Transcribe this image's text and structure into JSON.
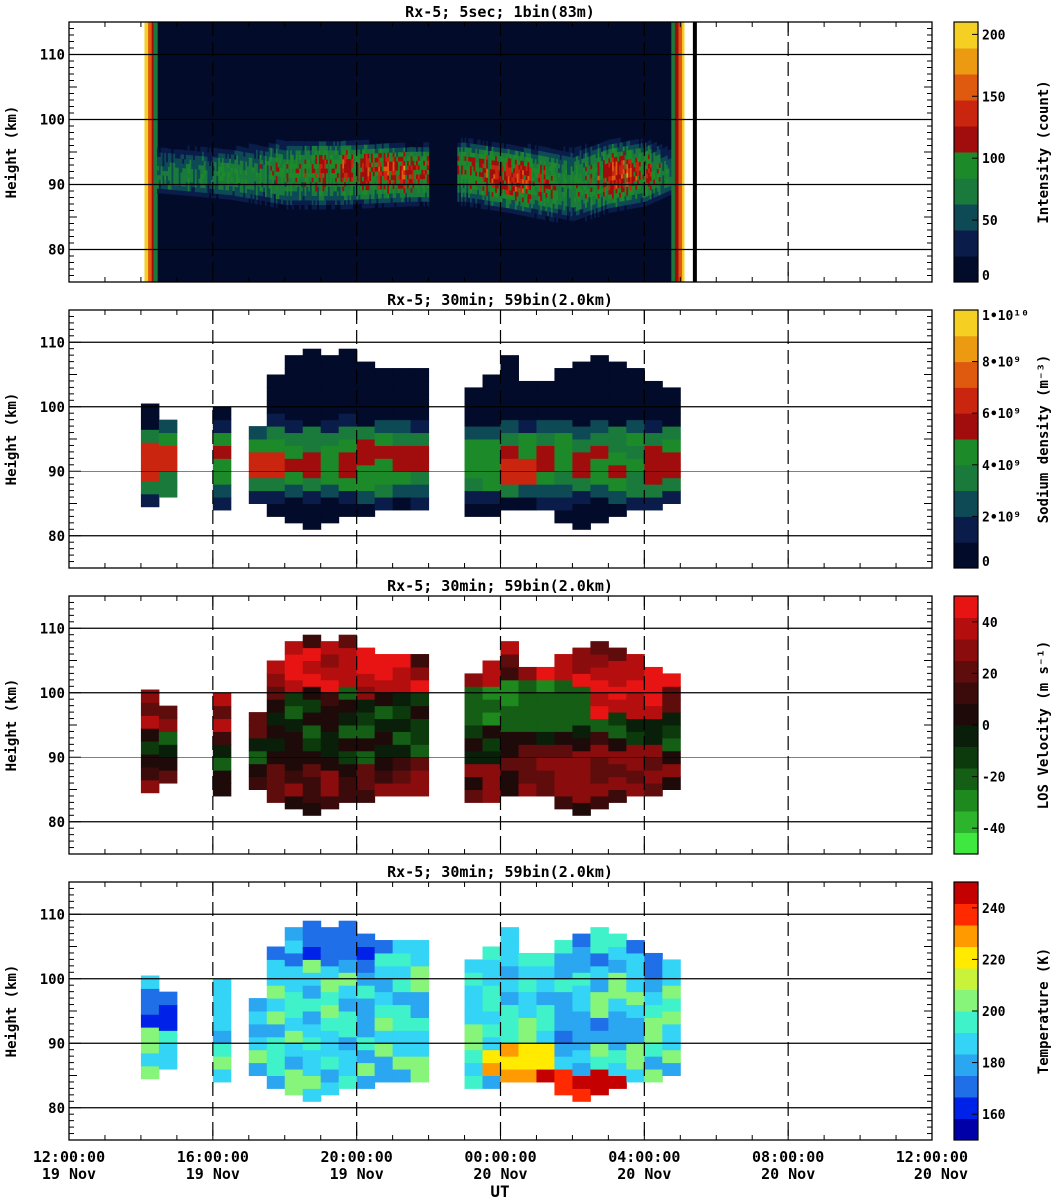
{
  "figure": {
    "xlabel": "UT",
    "x_ticks": [
      {
        "time": "12:00:00",
        "date": "19 Nov"
      },
      {
        "time": "16:00:00",
        "date": "19 Nov"
      },
      {
        "time": "20:00:00",
        "date": "19 Nov"
      },
      {
        "time": "00:00:00",
        "date": "20 Nov"
      },
      {
        "time": "04:00:00",
        "date": "20 Nov"
      },
      {
        "time": "08:00:00",
        "date": "20 Nov"
      },
      {
        "time": "12:00:00",
        "date": "20 Nov"
      }
    ]
  },
  "chart_data": [
    {
      "type": "heatmap",
      "title": "Rx-5;  5sec; 1bin(83m)",
      "ylabel": "Height (km)",
      "colorbar_label": "Intensity (count)",
      "colorbar_ticks": [
        "0",
        "50",
        "100",
        "150",
        "200"
      ],
      "colorbar_range": [
        0,
        210
      ],
      "colors": [
        "#020b2a",
        "#0a1c4a",
        "#0d4a55",
        "#1a7a3c",
        "#1d8a2a",
        "#a10d0d",
        "#c9250f",
        "#df5a0e",
        "#eb9a12",
        "#f5d022"
      ],
      "x_range_hours": [
        12,
        36
      ],
      "ylim": [
        75,
        115
      ],
      "y_ticks": [
        80,
        90,
        100,
        110
      ],
      "data_span_hours": [
        14.1,
        29.1
      ],
      "data_gap_hours": [
        [
          22.0,
          22.8
        ]
      ],
      "layer": {
        "times": [
          14.5,
          16.5,
          18.0,
          19.5,
          21.5,
          23.0,
          24.2,
          26.0,
          27.0,
          28.0,
          28.8
        ],
        "peak_km": [
          90.5,
          90.8,
          91.5,
          92.5,
          92.0,
          92.5,
          91.0,
          89.5,
          91.0,
          91.5,
          90.0
        ],
        "peak_counts": [
          70,
          80,
          95,
          120,
          130,
          100,
          140,
          80,
          130,
          125,
          60
        ],
        "bottom_km": [
          88,
          87,
          85.5,
          85.5,
          86,
          86,
          85,
          83,
          85,
          86,
          88
        ],
        "top_km": [
          96,
          96,
          97,
          97,
          96,
          97,
          96,
          96,
          97,
          97,
          96
        ]
      }
    },
    {
      "type": "heatmap",
      "title": "Rx-5; 30min; 59bin(2.0km)",
      "ylabel": "Height (km)",
      "colorbar_label": "Sodium density (m⁻³)",
      "colorbar_ticks": [
        "0",
        "2•10⁹",
        "4•10⁹",
        "6•10⁹",
        "8•10⁹",
        "1•10¹⁰"
      ],
      "colorbar_range": [
        0,
        10000000000
      ],
      "colors": [
        "#020b2a",
        "#0a1c4a",
        "#0d4a55",
        "#1a7a3c",
        "#1d8a2a",
        "#a10d0d",
        "#c9250f",
        "#df5a0e",
        "#eb9a12",
        "#f5d022"
      ],
      "x_range_hours": [
        12,
        36
      ],
      "ylim": [
        75,
        115
      ],
      "y_ticks": [
        80,
        90,
        100,
        110
      ],
      "columns": [
        {
          "t": 14.25,
          "bottom": 84.5,
          "top": 100
        },
        {
          "t": 14.75,
          "bottom": 86,
          "top": 97.5
        },
        {
          "t": 16.25,
          "bottom": 84,
          "top": 99
        },
        {
          "t": 17.25,
          "bottom": 85,
          "top": 97
        },
        {
          "t": 17.75,
          "bottom": 83,
          "top": 104
        },
        {
          "t": 18.25,
          "bottom": 82,
          "top": 107
        },
        {
          "t": 18.75,
          "bottom": 81,
          "top": 108
        },
        {
          "t": 19.25,
          "bottom": 82,
          "top": 107.5
        },
        {
          "t": 19.75,
          "bottom": 83,
          "top": 109
        },
        {
          "t": 20.25,
          "bottom": 83,
          "top": 107
        },
        {
          "t": 20.75,
          "bottom": 84,
          "top": 106
        },
        {
          "t": 21.25,
          "bottom": 84,
          "top": 106
        },
        {
          "t": 21.75,
          "bottom": 84,
          "top": 106
        },
        {
          "t": 23.25,
          "bottom": 83,
          "top": 103
        },
        {
          "t": 23.75,
          "bottom": 83,
          "top": 105
        },
        {
          "t": 24.25,
          "bottom": 84,
          "top": 107
        },
        {
          "t": 24.75,
          "bottom": 84,
          "top": 104
        },
        {
          "t": 25.25,
          "bottom": 84,
          "top": 104
        },
        {
          "t": 25.75,
          "bottom": 82,
          "top": 106
        },
        {
          "t": 26.25,
          "bottom": 81,
          "top": 107
        },
        {
          "t": 26.75,
          "bottom": 82,
          "top": 107
        },
        {
          "t": 27.25,
          "bottom": 83,
          "top": 106
        },
        {
          "t": 27.75,
          "bottom": 84,
          "top": 105
        },
        {
          "t": 28.25,
          "bottom": 84,
          "top": 104
        },
        {
          "t": 28.75,
          "bottom": 85,
          "top": 103
        }
      ],
      "density_peaks": [
        {
          "t": 14.5,
          "km": 91.5,
          "value": 6000000000
        },
        {
          "t": 17.5,
          "km": 91,
          "value": 6500000000
        },
        {
          "t": 24.5,
          "km": 90.5,
          "value": 6000000000
        },
        {
          "t": 21.5,
          "km": 92,
          "value": 5000000000
        }
      ]
    },
    {
      "type": "heatmap",
      "title": "Rx-5; 30min; 59bin(2.0km)",
      "ylabel": "Height (km)",
      "colorbar_label": "LOS Velocity (m s⁻¹)",
      "colorbar_ticks": [
        "-40",
        "-20",
        "0",
        "20",
        "40"
      ],
      "colorbar_range": [
        -50,
        50
      ],
      "colors": [
        "#3ee83e",
        "#2cb52c",
        "#1e8a1e",
        "#155e15",
        "#0c3a0c",
        "#0a1f0a",
        "#1f0a0a",
        "#3b0b0b",
        "#5e0c0c",
        "#8a0c0c",
        "#b50e0e",
        "#e81414"
      ],
      "x_range_hours": [
        12,
        36
      ],
      "ylim": [
        75,
        115
      ],
      "y_ticks": [
        80,
        90,
        100,
        110
      ],
      "features": [
        {
          "t": 19.75,
          "km": 104,
          "value": 45
        },
        {
          "t": 26.75,
          "km": 100,
          "value": 48
        },
        {
          "t": 24.5,
          "km": 98,
          "value": -25
        },
        {
          "t": 26.5,
          "km": 88,
          "value": 30
        }
      ]
    },
    {
      "type": "heatmap",
      "title": "Rx-5; 30min; 59bin(2.0km)",
      "ylabel": "Height (km)",
      "colorbar_label": "Temperature (K)",
      "colorbar_ticks": [
        "160",
        "180",
        "200",
        "220",
        "240"
      ],
      "colorbar_range": [
        150,
        250
      ],
      "colors": [
        "#0000a8",
        "#0022e8",
        "#1f6fe8",
        "#2aa7f0",
        "#33d4f5",
        "#3ff2c9",
        "#86f57a",
        "#c9f23a",
        "#ffea00",
        "#ff9a00",
        "#ff2a00",
        "#c40000"
      ],
      "x_range_hours": [
        12,
        36
      ],
      "ylim": [
        75,
        115
      ],
      "y_ticks": [
        80,
        90,
        100,
        110
      ],
      "features": [
        {
          "t": 14.5,
          "km": 95,
          "value": 165
        },
        {
          "t": 19.75,
          "km": 106,
          "value": 170
        },
        {
          "t": 24.5,
          "km": 87,
          "value": 225
        },
        {
          "t": 26.25,
          "km": 83,
          "value": 240
        },
        {
          "t": 26.75,
          "km": 92,
          "value": 178
        }
      ]
    }
  ]
}
